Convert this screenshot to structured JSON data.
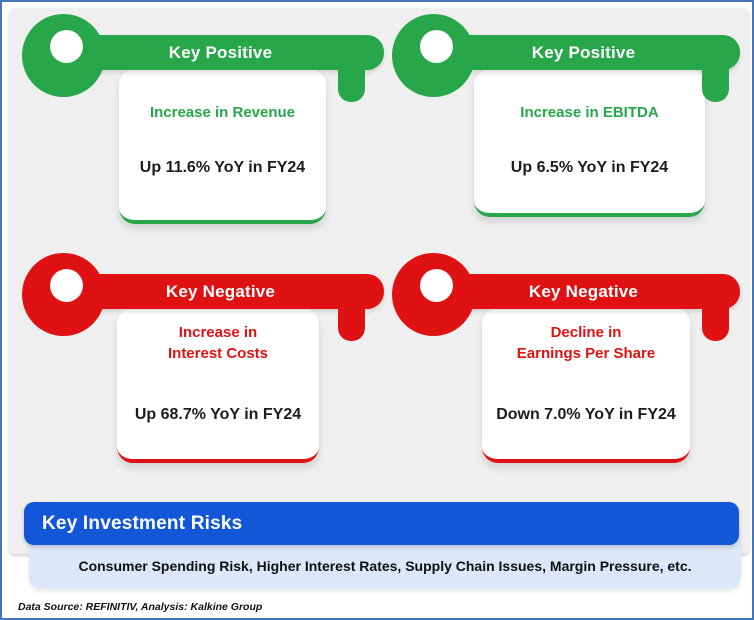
{
  "colors": {
    "positive_green": "#27a64a",
    "negative_red": "#e01112",
    "banner_blue": "#1357d9",
    "risk_box_blue": "#dde7fa",
    "panel_gray": "#f0eff0",
    "frame_border_blue": "#4576b9"
  },
  "cards": [
    {
      "header": "Key Positive",
      "title": "Increase in Revenue",
      "value": "Up 11.6% YoY in FY24"
    },
    {
      "header": "Key Positive",
      "title": "Increase in EBITDA",
      "value": "Up 6.5% YoY in FY24"
    },
    {
      "header": "Key Negative",
      "title": "Increase in\nInterest Costs",
      "value": "Up 68.7% YoY in FY24"
    },
    {
      "header": "Key Negative",
      "title": "Decline in\nEarnings Per Share",
      "value": "Down 7.0% YoY in FY24"
    }
  ],
  "risks": {
    "header": "Key Investment Risks",
    "text": "Consumer Spending Risk, Higher Interest Rates, Supply Chain Issues, Margin Pressure, etc."
  },
  "footer": {
    "source": "Data Source: REFINITIV, Analysis: Kalkine Group"
  }
}
